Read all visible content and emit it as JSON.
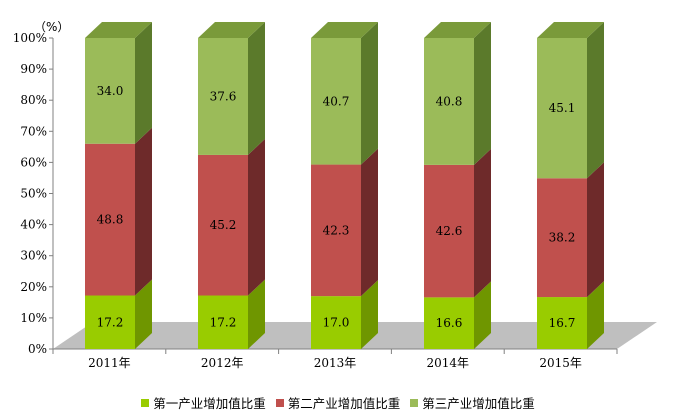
{
  "chart_data": {
    "type": "bar",
    "stacked": true,
    "three_d": true,
    "unit_label": "（%）",
    "categories": [
      "2011年",
      "2012年",
      "2013年",
      "2014年",
      "2015年"
    ],
    "series": [
      {
        "name": "第一产业增加值比重",
        "values": [
          17.2,
          17.2,
          17.0,
          16.6,
          16.7
        ],
        "color": "#99cc00",
        "side_color": "#6f9600",
        "top_color": "#b8e23a"
      },
      {
        "name": "第二产业增加值比重",
        "values": [
          48.8,
          45.2,
          42.3,
          42.6,
          38.2
        ],
        "color": "#c0504d",
        "side_color": "#6e2a2a",
        "top_color": "#d9827f"
      },
      {
        "name": "第三产业增加值比重",
        "values": [
          34.0,
          37.6,
          40.7,
          40.8,
          45.1
        ],
        "color": "#9bbb59",
        "side_color": "#5b7a2b",
        "top_color": "#7a9a3a"
      }
    ],
    "ylim": [
      0,
      100
    ],
    "yticks": [
      "0%",
      "10%",
      "20%",
      "30%",
      "40%",
      "50%",
      "60%",
      "70%",
      "80%",
      "90%",
      "100%"
    ],
    "legend_position": "bottom",
    "grid": false
  }
}
